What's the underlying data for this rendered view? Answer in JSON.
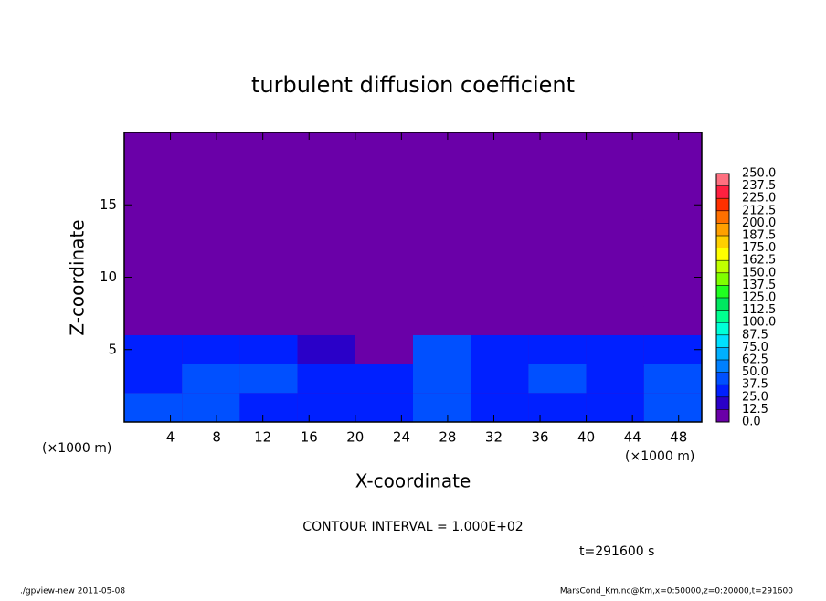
{
  "chart_data": {
    "type": "contour",
    "title": "turbulent diffusion coefficient",
    "xlabel": "X-coordinate",
    "ylabel": "Z-coordinate",
    "xunit": "(×1000 m)",
    "xunit_right": "(×1000 m)",
    "xlim": [
      0,
      50
    ],
    "ylim": [
      0,
      20
    ],
    "xticks": [
      4,
      8,
      12,
      16,
      20,
      24,
      28,
      32,
      36,
      40,
      44,
      48
    ],
    "yticks": [
      5,
      10,
      15
    ],
    "x": [
      2.5,
      7.5,
      12.5,
      17.5,
      22.5,
      27.5,
      32.5,
      37.5,
      42.5,
      47.5
    ],
    "y": [
      1,
      3,
      5,
      7,
      9,
      11,
      13,
      15,
      17,
      19
    ],
    "z": [
      [
        40,
        45,
        35,
        30,
        25,
        40,
        30,
        35,
        35,
        45
      ],
      [
        35,
        40,
        40,
        35,
        30,
        45,
        35,
        40,
        30,
        40
      ],
      [
        30,
        35,
        25,
        20,
        10,
        40,
        30,
        30,
        25,
        25
      ],
      [
        5,
        10,
        5,
        0,
        0,
        10,
        0,
        0,
        0,
        5
      ],
      [
        0,
        5,
        0,
        0,
        0,
        0,
        0,
        0,
        0,
        0
      ],
      [
        0,
        0,
        0,
        0,
        0,
        0,
        0,
        0,
        0,
        0
      ],
      [
        0,
        0,
        0,
        0,
        0,
        0,
        0,
        0,
        0,
        0
      ],
      [
        0,
        0,
        0,
        0,
        0,
        0,
        0,
        0,
        0,
        0
      ],
      [
        0,
        0,
        0,
        0,
        0,
        0,
        0,
        0,
        0,
        0
      ],
      [
        0,
        0,
        0,
        0,
        0,
        0,
        0,
        0,
        0,
        0
      ]
    ],
    "levels": [
      {
        "value": 0,
        "label": "0.0"
      },
      {
        "value": 12.5,
        "label": "12.5"
      },
      {
        "value": 25,
        "label": "25.0"
      },
      {
        "value": 37.5,
        "label": "37.5"
      },
      {
        "value": 50,
        "label": "50.0"
      },
      {
        "value": 62.5,
        "label": "62.5"
      },
      {
        "value": 75,
        "label": "75.0"
      },
      {
        "value": 87.5,
        "label": "87.5"
      },
      {
        "value": 100,
        "label": "100.0"
      },
      {
        "value": 112.5,
        "label": "112.5"
      },
      {
        "value": 125,
        "label": "125.0"
      },
      {
        "value": 137.5,
        "label": "137.5"
      },
      {
        "value": 150,
        "label": "150.0"
      },
      {
        "value": 162.5,
        "label": "162.5"
      },
      {
        "value": 175,
        "label": "175.0"
      },
      {
        "value": 187.5,
        "label": "187.5"
      },
      {
        "value": 200,
        "label": "200.0"
      },
      {
        "value": 212.5,
        "label": "212.5"
      },
      {
        "value": 225,
        "label": "225.0"
      },
      {
        "value": 237.5,
        "label": "237.5"
      },
      {
        "value": 250,
        "label": "250.0"
      }
    ],
    "level_colors": [
      "#6a00a8",
      "#2a00c8",
      "#0020ff",
      "#0050ff",
      "#0080ff",
      "#00b0ff",
      "#00e0ff",
      "#00ffd8",
      "#00ff90",
      "#00e860",
      "#20ff20",
      "#80ff00",
      "#c0ff00",
      "#ffff00",
      "#ffd000",
      "#ffa000",
      "#ff7000",
      "#ff3000",
      "#ff2040",
      "#ff7080"
    ],
    "contour_interval": "CONTOUR INTERVAL = 1.000E+02",
    "time_label": "t=291600 s",
    "footer_left": "./gpview-new   2011-05-08",
    "footer_right": "MarsCond_Km.nc@Km,x=0:50000,z=0:20000,t=291600"
  }
}
